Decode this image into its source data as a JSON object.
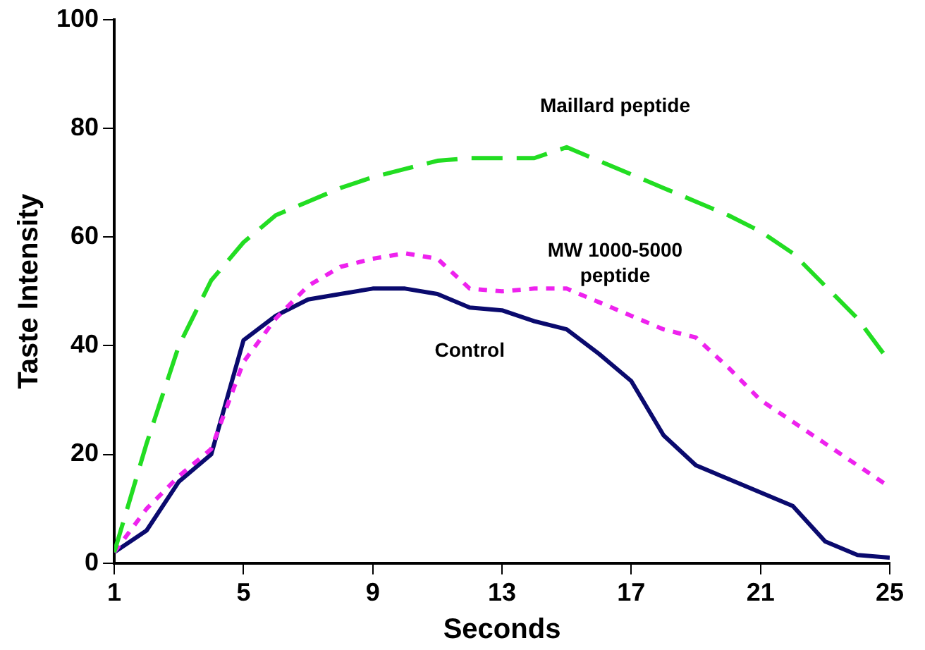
{
  "chart_data": {
    "type": "line",
    "xlabel": "Seconds",
    "ylabel": "Taste Intensity",
    "x": [
      1,
      2,
      3,
      4,
      5,
      6,
      7,
      8,
      9,
      10,
      11,
      12,
      13,
      14,
      15,
      16,
      17,
      18,
      19,
      20,
      21,
      22,
      23,
      24,
      25
    ],
    "xlim": [
      1,
      25
    ],
    "xticks": [
      1,
      5,
      9,
      13,
      17,
      21,
      25
    ],
    "ylim": [
      0,
      100
    ],
    "yticks": [
      0,
      20,
      40,
      60,
      80,
      100
    ],
    "grid": false,
    "legend": false,
    "marker": "none",
    "series": [
      {
        "name": "Maillard peptide",
        "color": "#22dd22",
        "line_style": "dashed",
        "values": [
          2,
          22,
          40,
          52,
          59,
          64,
          66.5,
          69,
          71,
          72.5,
          74,
          74.5,
          74.5,
          74.5,
          76.5,
          74,
          71.5,
          69,
          66.5,
          64,
          61,
          57,
          51,
          45,
          37
        ]
      },
      {
        "name": "MW 1000-5000\npeptide",
        "color": "#ee22ee",
        "line_style": "dotted",
        "values": [
          2,
          10,
          16,
          21,
          37,
          45,
          51,
          54.5,
          56,
          57,
          56,
          50.5,
          50,
          50.5,
          50.5,
          48,
          45.5,
          43,
          41.5,
          36,
          30,
          26,
          22,
          18,
          14
        ]
      },
      {
        "name": "Control",
        "color": "#0a0a6e",
        "line_style": "solid",
        "values": [
          2,
          6,
          15,
          20,
          41,
          45.5,
          48.5,
          49.5,
          50.5,
          50.5,
          49.5,
          47,
          46.5,
          44.5,
          43,
          38.5,
          33.5,
          23.5,
          18,
          15.5,
          13,
          10.5,
          4,
          1.5,
          1
        ]
      }
    ]
  }
}
